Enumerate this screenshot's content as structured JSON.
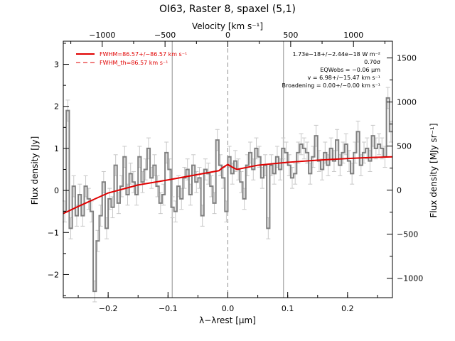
{
  "chart_data": {
    "type": "line",
    "title": "OI63, Raster 8, spaxel (5,1)",
    "xlabel": "λ−λrest [μm]",
    "ylabel_left": "Flux density [Jy]",
    "ylabel_right": "Flux density [MJy sr⁻¹]",
    "xlabel_top": "Velocity [km s⁻¹]",
    "xlim": [
      -0.275,
      0.275
    ],
    "ylim": [
      -2.55,
      3.55
    ],
    "xlim_top_kms": [
      -1310,
      1310
    ],
    "ylim_right": [
      -1220,
      1690
    ],
    "x_ticks": [
      -0.2,
      -0.1,
      0.0,
      0.1,
      0.2
    ],
    "x_tick_labels": [
      "−0.2",
      "−0.1",
      "0.0",
      "0.1",
      "0.2"
    ],
    "y_ticks": [
      -2,
      -1,
      0,
      1,
      2,
      3
    ],
    "y_tick_labels": [
      "−2",
      "−1",
      "0",
      "1",
      "2",
      "3"
    ],
    "top_ticks": [
      -1000,
      -500,
      0,
      500,
      1000
    ],
    "top_tick_labels": [
      "−1000",
      "−500",
      "0",
      "500",
      "1000"
    ],
    "right_ticks": [
      -1000,
      -500,
      0,
      500,
      1000,
      1500
    ],
    "right_tick_labels": [
      "−1000",
      "−500",
      "0",
      "500",
      "1000",
      "1500"
    ],
    "vertical_lines_solid": [
      -0.093,
      0.093
    ],
    "vertical_lines_dashed": [
      0.0
    ],
    "legend_position": "top-left",
    "legend": [
      {
        "label": "FWHM=86.57+/−86.57 km s⁻¹",
        "style": "solid",
        "color": "#e00000"
      },
      {
        "label": "FWHM_th=86.57 km s⁻¹",
        "style": "dashed",
        "color": "#e00000"
      }
    ],
    "annotations": [
      "1.73e−18+/−2.44e−18 W m⁻²",
      "0.70σ",
      "EQWobs = −0.06 μm",
      "v = 6.98+/−15.47 km s⁻¹",
      "Broadening = 0.00+/−0.00 km s⁻¹"
    ],
    "series": [
      {
        "name": "spectrum",
        "color": "#808080",
        "style": "steps",
        "x": [
          -0.275,
          -0.27,
          -0.265,
          -0.26,
          -0.255,
          -0.25,
          -0.245,
          -0.24,
          -0.235,
          -0.23,
          -0.225,
          -0.22,
          -0.215,
          -0.21,
          -0.205,
          -0.2,
          -0.195,
          -0.19,
          -0.185,
          -0.18,
          -0.175,
          -0.17,
          -0.165,
          -0.16,
          -0.155,
          -0.15,
          -0.145,
          -0.14,
          -0.135,
          -0.13,
          -0.125,
          -0.12,
          -0.115,
          -0.11,
          -0.105,
          -0.1,
          -0.095,
          -0.09,
          -0.085,
          -0.08,
          -0.075,
          -0.07,
          -0.065,
          -0.06,
          -0.055,
          -0.05,
          -0.045,
          -0.04,
          -0.035,
          -0.03,
          -0.025,
          -0.02,
          -0.015,
          -0.01,
          -0.005,
          0.0,
          0.005,
          0.01,
          0.015,
          0.02,
          0.025,
          0.03,
          0.035,
          0.04,
          0.045,
          0.05,
          0.055,
          0.06,
          0.065,
          0.07,
          0.075,
          0.08,
          0.085,
          0.09,
          0.095,
          0.1,
          0.105,
          0.11,
          0.115,
          0.12,
          0.125,
          0.13,
          0.135,
          0.14,
          0.145,
          0.15,
          0.155,
          0.16,
          0.165,
          0.17,
          0.175,
          0.18,
          0.185,
          0.19,
          0.195,
          0.2,
          0.205,
          0.21,
          0.215,
          0.22,
          0.225,
          0.23,
          0.235,
          0.24,
          0.245,
          0.25,
          0.255,
          0.26,
          0.265,
          0.27
        ],
        "y": [
          -0.5,
          1.9,
          -0.9,
          0.1,
          -0.6,
          -0.1,
          -0.6,
          0.1,
          -0.2,
          -0.5,
          -2.4,
          -1.2,
          -0.6,
          0.2,
          -0.9,
          -0.2,
          -0.4,
          0.6,
          -0.3,
          0.1,
          0.8,
          -0.1,
          0.4,
          0.2,
          -0.1,
          0.8,
          0.2,
          0.5,
          1.0,
          0.3,
          0.6,
          0.1,
          -0.3,
          -0.1,
          0.9,
          0.5,
          -0.4,
          -0.5,
          0.1,
          -0.2,
          0.3,
          0.5,
          -0.1,
          0.6,
          0.2,
          0.3,
          -0.6,
          0.5,
          0.4,
          0.1,
          -0.3,
          1.2,
          0.6,
          0.3,
          -0.5,
          0.8,
          0.4,
          0.7,
          0.5,
          0.2,
          -0.2,
          0.6,
          0.9,
          0.5,
          1.0,
          0.8,
          0.3,
          0.6,
          -0.9,
          0.6,
          0.4,
          0.8,
          0.5,
          1.0,
          0.9,
          0.6,
          0.3,
          0.4,
          0.9,
          1.1,
          1.0,
          0.9,
          0.4,
          0.8,
          1.3,
          0.7,
          0.5,
          0.9,
          0.6,
          1.0,
          0.7,
          1.2,
          0.6,
          0.9,
          1.1,
          0.7,
          0.4,
          0.9,
          1.4,
          0.6,
          0.9,
          1.0,
          0.7,
          1.3,
          1.0,
          1.1,
          1.0,
          0.8,
          2.2,
          1.4
        ],
        "yerr": [
          0.25,
          0.25,
          0.25,
          0.25,
          0.25,
          0.25,
          0.25,
          0.25,
          0.25,
          0.25,
          0.25,
          0.25,
          0.25,
          0.25,
          0.25,
          0.25,
          0.25,
          0.25,
          0.25,
          0.25,
          0.25,
          0.25,
          0.25,
          0.25,
          0.25,
          0.25,
          0.25,
          0.25,
          0.25,
          0.25,
          0.25,
          0.25,
          0.25,
          0.25,
          0.25,
          0.25,
          0.25,
          0.25,
          0.25,
          0.25,
          0.25,
          0.25,
          0.25,
          0.25,
          0.25,
          0.25,
          0.25,
          0.25,
          0.25,
          0.25,
          0.25,
          0.25,
          0.25,
          0.25,
          0.25,
          0.25,
          0.25,
          0.25,
          0.25,
          0.25,
          0.25,
          0.25,
          0.25,
          0.25,
          0.25,
          0.25,
          0.25,
          0.25,
          0.25,
          0.25,
          0.25,
          0.25,
          0.25,
          0.25,
          0.25,
          0.25,
          0.25,
          0.25,
          0.25,
          0.25,
          0.25,
          0.25,
          0.25,
          0.25,
          0.25,
          0.25,
          0.25,
          0.25,
          0.25,
          0.25,
          0.25,
          0.25,
          0.25,
          0.25,
          0.25,
          0.25,
          0.25,
          0.25,
          0.25,
          0.25,
          0.25,
          0.25,
          0.25,
          0.25,
          0.25,
          0.25,
          0.25,
          0.25,
          0.25,
          0.25
        ]
      },
      {
        "name": "FWHM=86.57+/−86.57 km s⁻¹",
        "color": "#e00000",
        "style": "solid",
        "x": [
          -0.275,
          -0.25,
          -0.2,
          -0.15,
          -0.1,
          -0.05,
          -0.015,
          -0.008,
          0.0,
          0.008,
          0.015,
          0.05,
          0.1,
          0.15,
          0.2,
          0.25,
          0.275
        ],
        "y": [
          -0.55,
          -0.38,
          -0.06,
          0.13,
          0.25,
          0.38,
          0.47,
          0.55,
          0.62,
          0.55,
          0.5,
          0.6,
          0.67,
          0.72,
          0.76,
          0.79,
          0.8
        ]
      },
      {
        "name": "FWHM_th=86.57 km s⁻¹",
        "color": "#e00000",
        "style": "dashed",
        "x": [
          -0.015,
          -0.008,
          0.0,
          0.008,
          0.015
        ],
        "y": [
          0.47,
          0.54,
          0.6,
          0.54,
          0.5
        ]
      }
    ]
  }
}
